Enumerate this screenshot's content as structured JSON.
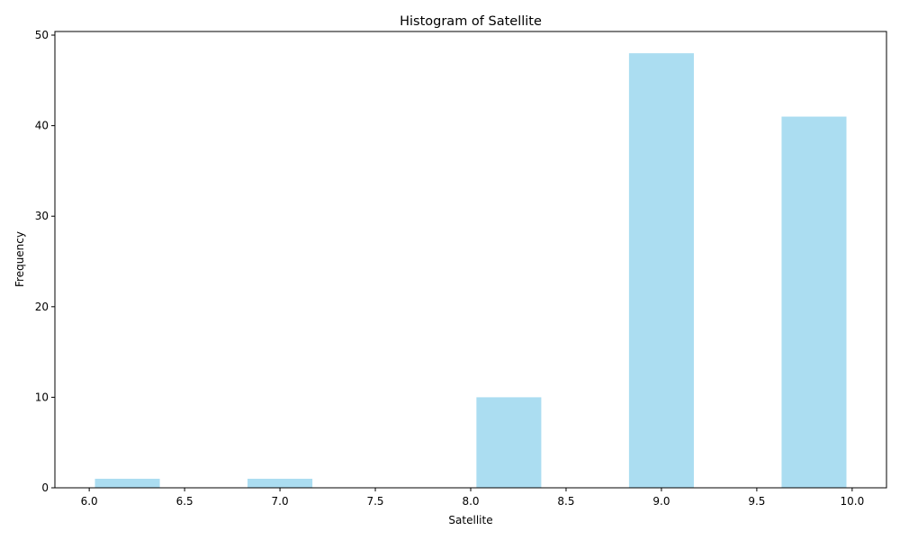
{
  "chart_data": {
    "type": "bar",
    "title": "Histogram of Satellite",
    "xlabel": "Satellite",
    "ylabel": "Frequency",
    "bin_edges": [
      6.0,
      6.4,
      6.8,
      7.2,
      7.6,
      8.0,
      8.4,
      8.8,
      9.2,
      9.6,
      10.0
    ],
    "values": [
      1,
      0,
      1,
      0,
      0,
      10,
      0,
      48,
      0,
      41
    ],
    "rwidth": 0.85,
    "xlim": [
      5.82,
      10.18
    ],
    "ylim": [
      0,
      50.4
    ],
    "xticks": [
      6.0,
      6.5,
      7.0,
      7.5,
      8.0,
      8.5,
      9.0,
      9.5,
      10.0
    ],
    "xtick_labels": [
      "6.0",
      "6.5",
      "7.0",
      "7.5",
      "8.0",
      "8.5",
      "9.0",
      "9.5",
      "10.0"
    ],
    "yticks": [
      0,
      10,
      20,
      30,
      40,
      50
    ],
    "ytick_labels": [
      "0",
      "10",
      "20",
      "30",
      "40",
      "50"
    ],
    "bar_color": "#87CEEB",
    "bar_alpha": 0.7,
    "grid": false,
    "legend": false
  }
}
